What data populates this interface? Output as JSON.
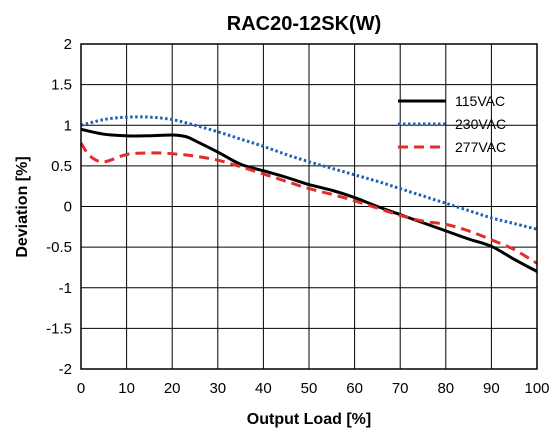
{
  "chart_data": {
    "type": "line",
    "title": "RAC20-12SK(W)",
    "xlabel": "Output Load [%]",
    "ylabel": "Deviation [%]",
    "xlim": [
      0,
      100
    ],
    "ylim": [
      -2,
      2
    ],
    "xticks": [
      0,
      10,
      20,
      30,
      40,
      50,
      60,
      70,
      80,
      90,
      100
    ],
    "yticks": [
      2,
      1.5,
      1,
      0.5,
      0,
      -0.5,
      -1,
      -1.5,
      -2
    ],
    "xtick_labels": [
      "0",
      "10",
      "20",
      "30",
      "40",
      "50",
      "60",
      "70",
      "80",
      "90",
      "100"
    ],
    "ytick_labels": [
      "2",
      "1.5",
      "1",
      "0.5",
      "0",
      "-0.5",
      "-1",
      "-1.5",
      "-2"
    ],
    "grid": true,
    "legend_position": "top-right",
    "series": [
      {
        "name": "115VAC",
        "color": "#000000",
        "style": "solid",
        "x": [
          0,
          5,
          10,
          15,
          20,
          23,
          25,
          30,
          35,
          40,
          45,
          50,
          55,
          60,
          65,
          70,
          75,
          80,
          85,
          90,
          95,
          100
        ],
        "y": [
          0.95,
          0.89,
          0.87,
          0.87,
          0.88,
          0.86,
          0.81,
          0.67,
          0.52,
          0.44,
          0.36,
          0.27,
          0.2,
          0.11,
          0.0,
          -0.1,
          -0.2,
          -0.3,
          -0.4,
          -0.49,
          -0.65,
          -0.8
        ]
      },
      {
        "name": "230VAC",
        "color": "#1f5fb4",
        "style": "dotted",
        "x": [
          0,
          5,
          10,
          15,
          20,
          25,
          30,
          35,
          40,
          45,
          50,
          55,
          60,
          65,
          70,
          75,
          80,
          85,
          90,
          95,
          100
        ],
        "y": [
          1.0,
          1.07,
          1.1,
          1.1,
          1.07,
          1.0,
          0.92,
          0.83,
          0.74,
          0.64,
          0.55,
          0.47,
          0.39,
          0.31,
          0.22,
          0.13,
          0.04,
          -0.05,
          -0.14,
          -0.21,
          -0.28
        ]
      },
      {
        "name": "277VAC",
        "color": "#e32d2d",
        "style": "dashed",
        "x": [
          0,
          2,
          5,
          10,
          15,
          20,
          25,
          30,
          35,
          40,
          45,
          50,
          55,
          60,
          65,
          70,
          75,
          80,
          85,
          90,
          95,
          100
        ],
        "y": [
          0.78,
          0.62,
          0.55,
          0.64,
          0.66,
          0.65,
          0.62,
          0.57,
          0.49,
          0.4,
          0.31,
          0.22,
          0.15,
          0.07,
          -0.02,
          -0.11,
          -0.18,
          -0.22,
          -0.3,
          -0.41,
          -0.53,
          -0.7
        ]
      }
    ]
  }
}
